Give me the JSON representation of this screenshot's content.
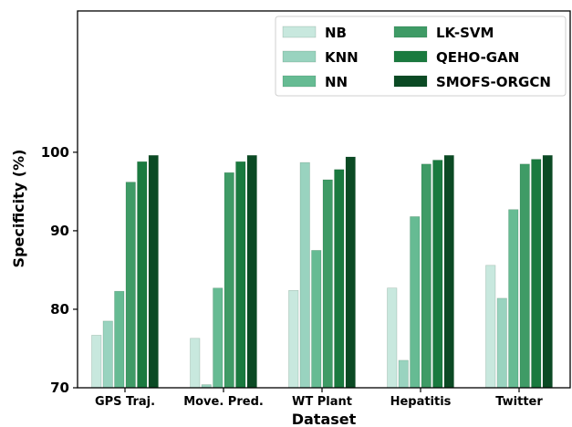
{
  "chart_data": {
    "type": "bar",
    "title": "",
    "xlabel": "Dataset",
    "ylabel": "Specificity (%)",
    "ylim": [
      70,
      118
    ],
    "yticks": [
      70,
      80,
      90,
      100
    ],
    "categories": [
      "GPS Traj.",
      "Move. Pred.",
      "WT Plant",
      "Hepatitis",
      "Twitter"
    ],
    "legend_position": "top-right",
    "series": [
      {
        "name": "NB",
        "color": "#c8e8de",
        "values": [
          76.7,
          76.3,
          82.4,
          82.7,
          85.6
        ]
      },
      {
        "name": "KNN",
        "color": "#99d3bf",
        "values": [
          78.5,
          70.4,
          98.7,
          73.5,
          81.4
        ]
      },
      {
        "name": "NN",
        "color": "#66bb93",
        "values": [
          82.3,
          82.7,
          87.5,
          91.8,
          92.7
        ]
      },
      {
        "name": "LK-SVM",
        "color": "#3f9b66",
        "values": [
          96.2,
          97.4,
          96.5,
          98.5,
          98.5
        ]
      },
      {
        "name": "QEHO-GAN",
        "color": "#1a7a3f",
        "values": [
          98.8,
          98.8,
          97.8,
          99.0,
          99.1
        ]
      },
      {
        "name": "SMOFS-ORGCN",
        "color": "#0b4a24",
        "values": [
          99.6,
          99.6,
          99.4,
          99.6,
          99.6
        ]
      }
    ]
  }
}
